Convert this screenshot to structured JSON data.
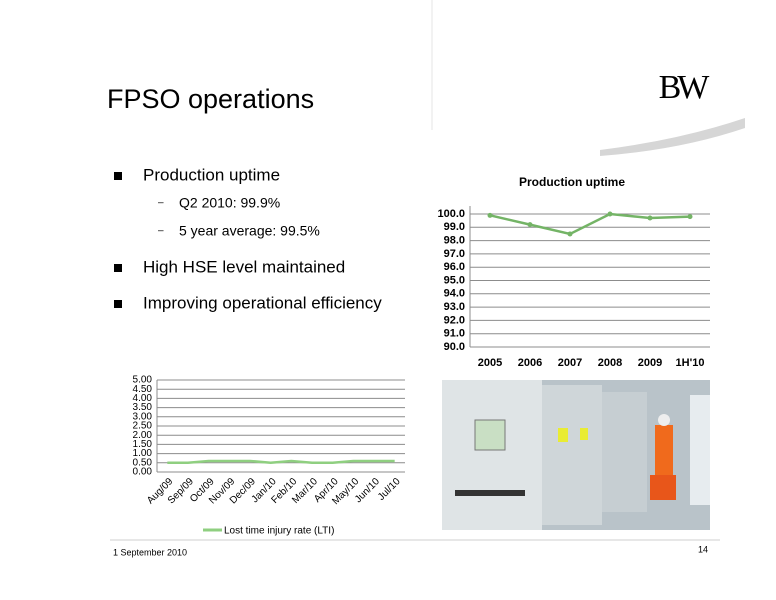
{
  "header": {
    "title": "FPSO operations",
    "logo": "BW"
  },
  "bullets": [
    {
      "text": "Production uptime",
      "sub": [
        "Q2 2010: 99.9%",
        "5 year average: 99.5%"
      ]
    },
    {
      "text": "High HSE level maintained",
      "sub": []
    },
    {
      "text": "Improving operational efficiency",
      "sub": []
    }
  ],
  "footer": {
    "date": "1 September 2010",
    "page": "14"
  },
  "chart_data": [
    {
      "type": "line",
      "title": "Production uptime",
      "categories": [
        "2005",
        "2006",
        "2007",
        "2008",
        "2009",
        "1H'10"
      ],
      "series": [
        {
          "name": null,
          "color": "#74b466",
          "values": [
            99.9,
            99.2,
            98.5,
            100.0,
            99.7,
            99.8
          ]
        }
      ],
      "ylim": [
        90,
        100
      ],
      "yticks": [
        {
          "value": 90,
          "label": "90.0"
        },
        {
          "value": 91,
          "label": "91.0"
        },
        {
          "value": 92,
          "label": "92.0"
        },
        {
          "value": 93,
          "label": "93.0"
        },
        {
          "value": 94,
          "label": "94.0"
        },
        {
          "value": 95,
          "label": "95.0"
        },
        {
          "value": 96,
          "label": "96.0"
        },
        {
          "value": 97,
          "label": "97.0"
        },
        {
          "value": 98,
          "label": "98.0"
        },
        {
          "value": 99,
          "label": "99.0"
        },
        {
          "value": 100,
          "label": "100.0"
        }
      ],
      "grid": true
    },
    {
      "type": "line",
      "categories": [
        "Aug/09",
        "Sep/09",
        "Oct/09",
        "Nov/09",
        "Dec/09",
        "Jan/10",
        "Feb/10",
        "Mar/10",
        "Apr/10",
        "May/10",
        "Jun/10",
        "Jul/10"
      ],
      "series": [
        {
          "name": "Lost time injury rate (LTI)",
          "color": "#8fcf80",
          "values": [
            0.5,
            0.5,
            0.6,
            0.6,
            0.6,
            0.5,
            0.6,
            0.5,
            0.5,
            0.6,
            0.6,
            0.6
          ]
        }
      ],
      "ylim": [
        0,
        5
      ],
      "yticks": [
        {
          "value": 0,
          "label": "0.00"
        },
        {
          "value": 0.5,
          "label": "0.50"
        },
        {
          "value": 1,
          "label": "1.00"
        },
        {
          "value": 1.5,
          "label": "1.50"
        },
        {
          "value": 2,
          "label": "2.00"
        },
        {
          "value": 2.5,
          "label": "2.50"
        },
        {
          "value": 3,
          "label": "3.00"
        },
        {
          "value": 3.5,
          "label": "3.50"
        },
        {
          "value": 4,
          "label": "4.00"
        },
        {
          "value": 4.5,
          "label": "4.50"
        },
        {
          "value": 5,
          "label": "5.00"
        }
      ],
      "grid": true,
      "legend": "bottom"
    }
  ]
}
